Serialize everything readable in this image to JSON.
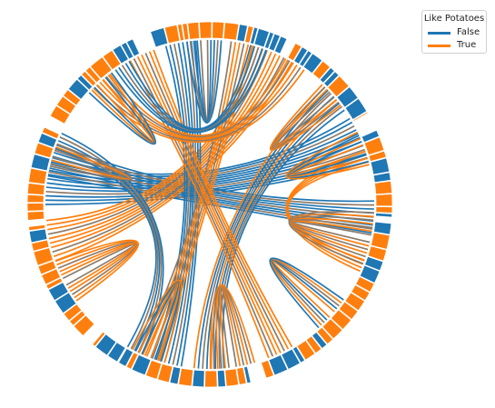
{
  "legend": {
    "title": "Like Potatoes",
    "items": [
      {
        "label": "False",
        "color": "#1f77b4"
      },
      {
        "label": "True",
        "color": "#ff7f0e"
      }
    ]
  },
  "colors": {
    "false": "#1f77b4",
    "true": "#ff7f0e",
    "blend": "#8c7b6a"
  }
}
